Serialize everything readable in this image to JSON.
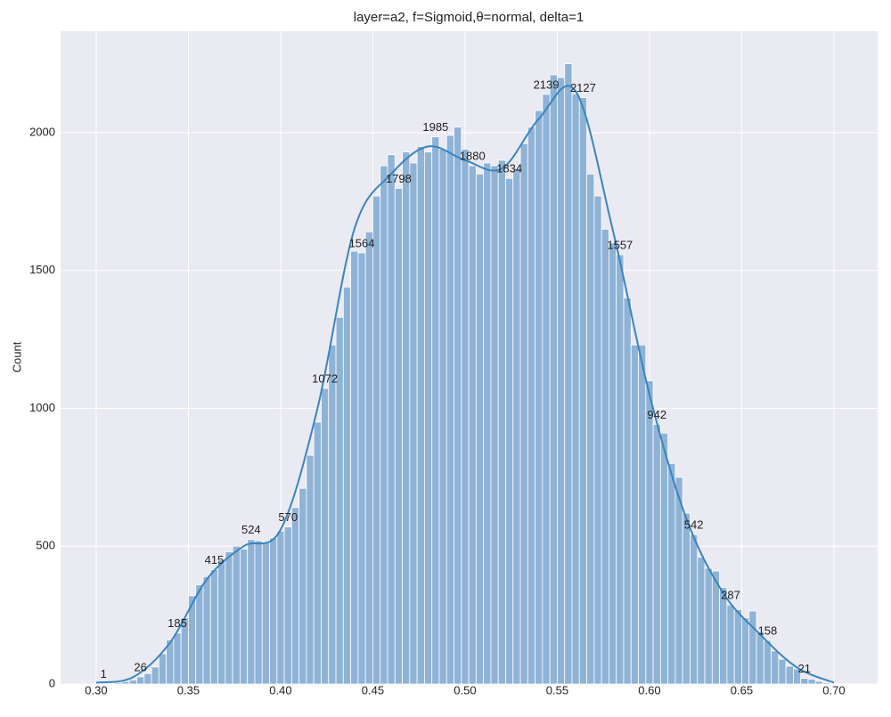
{
  "chart_data": {
    "type": "histogram",
    "title": "layer=a2, f=Sigmoid,θ=normal, delta=1",
    "y_label": "Count",
    "bins": [
      0.302,
      0.306,
      0.31,
      0.314,
      0.318,
      0.322,
      0.326,
      0.33,
      0.334,
      0.338,
      0.342,
      0.346,
      0.35,
      0.354,
      0.358,
      0.362,
      0.366,
      0.37,
      0.374,
      0.378,
      0.382,
      0.386,
      0.39,
      0.394,
      0.398,
      0.402,
      0.406,
      0.41,
      0.414,
      0.418,
      0.422,
      0.426,
      0.43,
      0.434,
      0.438,
      0.442,
      0.446,
      0.45,
      0.454,
      0.458,
      0.462,
      0.466,
      0.47,
      0.474,
      0.478,
      0.482,
      0.486,
      0.49,
      0.494,
      0.498,
      0.502,
      0.506,
      0.51,
      0.514,
      0.518,
      0.522,
      0.526,
      0.53,
      0.534,
      0.538,
      0.542,
      0.546,
      0.55,
      0.554,
      0.558,
      0.562,
      0.566,
      0.57,
      0.574,
      0.578,
      0.582,
      0.586,
      0.59,
      0.594,
      0.598,
      0.602,
      0.606,
      0.61,
      0.614,
      0.618,
      0.622,
      0.626,
      0.63,
      0.634,
      0.638,
      0.642,
      0.646,
      0.65,
      0.654,
      0.658,
      0.662,
      0.666,
      0.67,
      0.674,
      0.678,
      0.682,
      0.686,
      0.69,
      0.694,
      0.698,
      0.702
    ],
    "values": [
      1,
      2,
      5,
      9,
      15,
      26,
      38,
      62,
      110,
      160,
      185,
      240,
      320,
      360,
      390,
      415,
      450,
      480,
      500,
      490,
      524,
      520,
      515,
      530,
      555,
      570,
      640,
      710,
      830,
      950,
      1072,
      1230,
      1330,
      1440,
      1570,
      1564,
      1640,
      1770,
      1880,
      1920,
      1798,
      1930,
      1890,
      1950,
      1930,
      1985,
      1940,
      1990,
      2020,
      1940,
      1880,
      1850,
      1890,
      1880,
      1900,
      1834,
      1870,
      1960,
      2020,
      2080,
      2139,
      2210,
      2200,
      2250,
      2140,
      2127,
      1850,
      1770,
      1650,
      1600,
      1557,
      1400,
      1230,
      1230,
      1100,
      942,
      910,
      800,
      750,
      620,
      542,
      460,
      420,
      410,
      350,
      287,
      270,
      240,
      265,
      190,
      158,
      120,
      90,
      65,
      55,
      21,
      18,
      10,
      5,
      2
    ],
    "color": "#8fb3d6",
    "kde": {
      "color": "#3a84bf",
      "x": [
        0.3,
        0.32,
        0.34,
        0.36,
        0.38,
        0.4,
        0.42,
        0.44,
        0.46,
        0.48,
        0.5,
        0.52,
        0.54,
        0.56,
        0.58,
        0.6,
        0.62,
        0.64,
        0.66,
        0.68,
        0.7
      ],
      "values": [
        5,
        25,
        150,
        380,
        500,
        560,
        1000,
        1650,
        1850,
        1950,
        1900,
        1870,
        2050,
        2150,
        1650,
        1050,
        600,
        330,
        180,
        60,
        5
      ]
    },
    "xlim": [
      0.2807,
      0.7237
    ],
    "ylim": [
      0,
      2368
    ],
    "xticks": [
      {
        "value": 0.3,
        "label": "0.30"
      },
      0.35,
      {
        "value": 0.4,
        "label": "0.40"
      },
      0.45,
      {
        "value": 0.5,
        "label": "0.50"
      },
      0.55,
      {
        "value": 0.6,
        "label": "0.60"
      },
      0.65,
      {
        "value": 0.7,
        "label": "0.70"
      }
    ],
    "yticks": [
      0,
      500,
      1000,
      1500,
      2000
    ],
    "grid": true
  }
}
